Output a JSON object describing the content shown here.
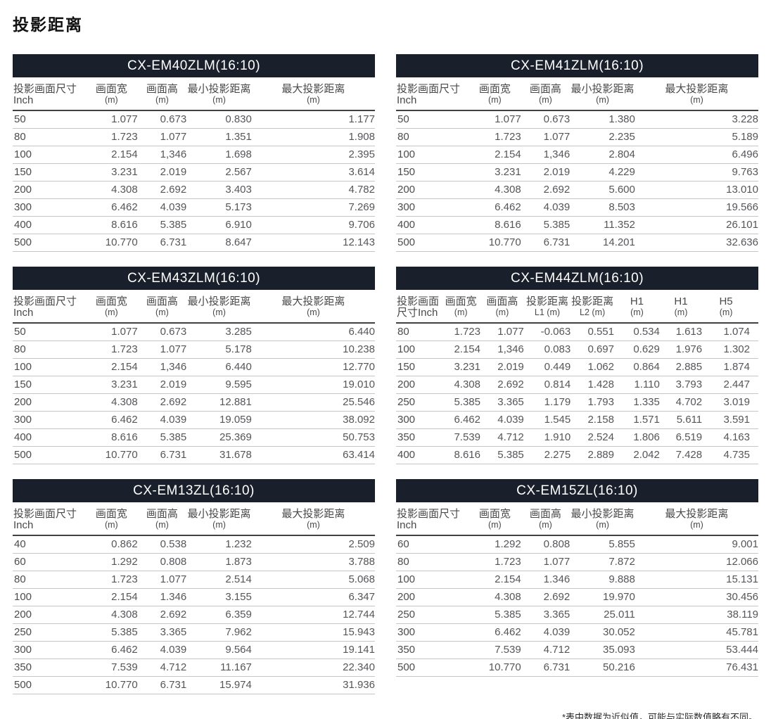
{
  "page_title": "投影距离",
  "footnote": "*表中数据为近似值，可能与实际数值略有不同。",
  "colors": {
    "header_bar_bg": "#1a202b",
    "header_bar_text": "#ffffff",
    "header_underline": "#3f4144",
    "row_line": "#c6c6c6",
    "cell_text": "#55565a"
  },
  "tables": [
    {
      "id": "cx-em40zlm",
      "title": "CX-EM40ZLM(16:10)",
      "columns": [
        {
          "line1": "投影画面尺寸",
          "line2": "Inch"
        },
        {
          "line1": "画面宽",
          "line2": "(m)"
        },
        {
          "line1": "画面高",
          "line2": "(m)"
        },
        {
          "line1": "最小投影距离",
          "line2": "(m)"
        },
        {
          "line1": "最大投影距离",
          "line2": "(m)"
        }
      ],
      "rows": [
        [
          "50",
          "1.077",
          "0.673",
          "0.830",
          "1.177"
        ],
        [
          "80",
          "1.723",
          "1.077",
          "1.351",
          "1.908"
        ],
        [
          "100",
          "2.154",
          "1,346",
          "1.698",
          "2.395"
        ],
        [
          "150",
          "3.231",
          "2.019",
          "2.567",
          "3.614"
        ],
        [
          "200",
          "4.308",
          "2.692",
          "3.403",
          "4.782"
        ],
        [
          "300",
          "6.462",
          "4.039",
          "5.173",
          "7.269"
        ],
        [
          "400",
          "8.616",
          "5.385",
          "6.910",
          "9.706"
        ],
        [
          "500",
          "10.770",
          "6.731",
          "8.647",
          "12.143"
        ]
      ]
    },
    {
      "id": "cx-em41zlm",
      "title": "CX-EM41ZLM(16:10)",
      "columns": [
        {
          "line1": "投影画面尺寸",
          "line2": "Inch"
        },
        {
          "line1": "画面宽",
          "line2": "(m)"
        },
        {
          "line1": "画面高",
          "line2": "(m)"
        },
        {
          "line1": "最小投影距离",
          "line2": "(m)"
        },
        {
          "line1": "最大投影距离",
          "line2": "(m)"
        }
      ],
      "rows": [
        [
          "50",
          "1.077",
          "0.673",
          "1.380",
          "3.228"
        ],
        [
          "80",
          "1.723",
          "1.077",
          "2.235",
          "5.189"
        ],
        [
          "100",
          "2.154",
          "1,346",
          "2.804",
          "6.496"
        ],
        [
          "150",
          "3.231",
          "2.019",
          "4.229",
          "9.763"
        ],
        [
          "200",
          "4.308",
          "2.692",
          "5.600",
          "13.010"
        ],
        [
          "300",
          "6.462",
          "4.039",
          "8.503",
          "19.566"
        ],
        [
          "400",
          "8.616",
          "5.385",
          "11.352",
          "26.101"
        ],
        [
          "500",
          "10.770",
          "6.731",
          "14.201",
          "32.636"
        ]
      ]
    },
    {
      "id": "cx-em43zlm",
      "title": "CX-EM43ZLM(16:10)",
      "columns": [
        {
          "line1": "投影画面尺寸",
          "line2": "Inch"
        },
        {
          "line1": "画面宽",
          "line2": "(m)"
        },
        {
          "line1": "画面高",
          "line2": "(m)"
        },
        {
          "line1": "最小投影距离",
          "line2": "(m)"
        },
        {
          "line1": "最大投影距离",
          "line2": "(m)"
        }
      ],
      "rows": [
        [
          "50",
          "1.077",
          "0.673",
          "3.285",
          "6.440"
        ],
        [
          "80",
          "1.723",
          "1.077",
          "5.178",
          "10.238"
        ],
        [
          "100",
          "2.154",
          "1,346",
          "6.440",
          "12.770"
        ],
        [
          "150",
          "3.231",
          "2.019",
          "9.595",
          "19.010"
        ],
        [
          "200",
          "4.308",
          "2.692",
          "12.881",
          "25.546"
        ],
        [
          "300",
          "6.462",
          "4.039",
          "19.059",
          "38.092"
        ],
        [
          "400",
          "8.616",
          "5.385",
          "25.369",
          "50.753"
        ],
        [
          "500",
          "10.770",
          "6.731",
          "31.678",
          "63.414"
        ]
      ]
    },
    {
      "id": "cx-em44zlm",
      "title": "CX-EM44ZLM(16:10)",
      "columns": [
        {
          "line1": "投影画面",
          "line2": "尺寸Inch"
        },
        {
          "line1": "画面宽",
          "line2": "(m)"
        },
        {
          "line1": "画面高",
          "line2": "(m)"
        },
        {
          "line1": "投影距离",
          "line2": "L1 (m)"
        },
        {
          "line1": "投影距离",
          "line2": "L2 (m)"
        },
        {
          "line1": "H1",
          "line2": "(m)"
        },
        {
          "line1": "H1",
          "line2": "(m)"
        },
        {
          "line1": "H5",
          "line2": "(m)"
        }
      ],
      "rows": [
        [
          "80",
          "1.723",
          "1.077",
          "-0.063",
          "0.551",
          "0.534",
          "1.613",
          "1.074"
        ],
        [
          "100",
          "2.154",
          "1,346",
          "0.083",
          "0.697",
          "0.629",
          "1.976",
          "1.302"
        ],
        [
          "150",
          "3.231",
          "2.019",
          "0.449",
          "1.062",
          "0.864",
          "2.885",
          "1.874"
        ],
        [
          "200",
          "4.308",
          "2.692",
          "0.814",
          "1.428",
          "1.110",
          "3.793",
          "2.447"
        ],
        [
          "250",
          "5.385",
          "3.365",
          "1.179",
          "1.793",
          "1.335",
          "4.702",
          "3.019"
        ],
        [
          "300",
          "6.462",
          "4.039",
          "1.545",
          "2.158",
          "1.571",
          "5.611",
          "3.591"
        ],
        [
          "350",
          "7.539",
          "4.712",
          "1.910",
          "2.524",
          "1.806",
          "6.519",
          "4.163"
        ],
        [
          "400",
          "8.616",
          "5.385",
          "2.275",
          "2.889",
          "2.042",
          "7.428",
          "4.735"
        ]
      ]
    },
    {
      "id": "cx-em13zl",
      "title": "CX-EM13ZL(16:10)",
      "columns": [
        {
          "line1": "投影画面尺寸",
          "line2": "Inch"
        },
        {
          "line1": "画面宽",
          "line2": "(m)"
        },
        {
          "line1": "画面高",
          "line2": "(m)"
        },
        {
          "line1": "最小投影距离",
          "line2": "(m)"
        },
        {
          "line1": "最大投影距离",
          "line2": "(m)"
        }
      ],
      "rows": [
        [
          "40",
          "0.862",
          "0.538",
          "1.232",
          "2.509"
        ],
        [
          "60",
          "1.292",
          "0.808",
          "1.873",
          "3.788"
        ],
        [
          "80",
          "1.723",
          "1.077",
          "2.514",
          "5.068"
        ],
        [
          "100",
          "2.154",
          "1.346",
          "3.155",
          "6.347"
        ],
        [
          "200",
          "4.308",
          "2.692",
          "6.359",
          "12.744"
        ],
        [
          "250",
          "5.385",
          "3.365",
          "7.962",
          "15.943"
        ],
        [
          "300",
          "6.462",
          "4.039",
          "9.564",
          "19.141"
        ],
        [
          "350",
          "7.539",
          "4.712",
          "11.167",
          "22.340"
        ],
        [
          "500",
          "10.770",
          "6.731",
          "15.974",
          "31.936"
        ]
      ]
    },
    {
      "id": "cx-em15zl",
      "title": "CX-EM15ZL(16:10)",
      "columns": [
        {
          "line1": "投影画面尺寸",
          "line2": "Inch"
        },
        {
          "line1": "画面宽",
          "line2": "(m)"
        },
        {
          "line1": "画面高",
          "line2": "(m)"
        },
        {
          "line1": "最小投影距离",
          "line2": "(m)"
        },
        {
          "line1": "最大投影距离",
          "line2": "(m)"
        }
      ],
      "rows": [
        [
          "60",
          "1.292",
          "0.808",
          "5.855",
          "9.001"
        ],
        [
          "80",
          "1.723",
          "1.077",
          "7.872",
          "12.066"
        ],
        [
          "100",
          "2.154",
          "1.346",
          "9.888",
          "15.131"
        ],
        [
          "200",
          "4.308",
          "2.692",
          "19.970",
          "30.456"
        ],
        [
          "250",
          "5.385",
          "3.365",
          "25.011",
          "38.119"
        ],
        [
          "300",
          "6.462",
          "4.039",
          "30.052",
          "45.781"
        ],
        [
          "350",
          "7.539",
          "4.712",
          "35.093",
          "53.444"
        ],
        [
          "500",
          "10.770",
          "6.731",
          "50.216",
          "76.431"
        ]
      ]
    }
  ]
}
